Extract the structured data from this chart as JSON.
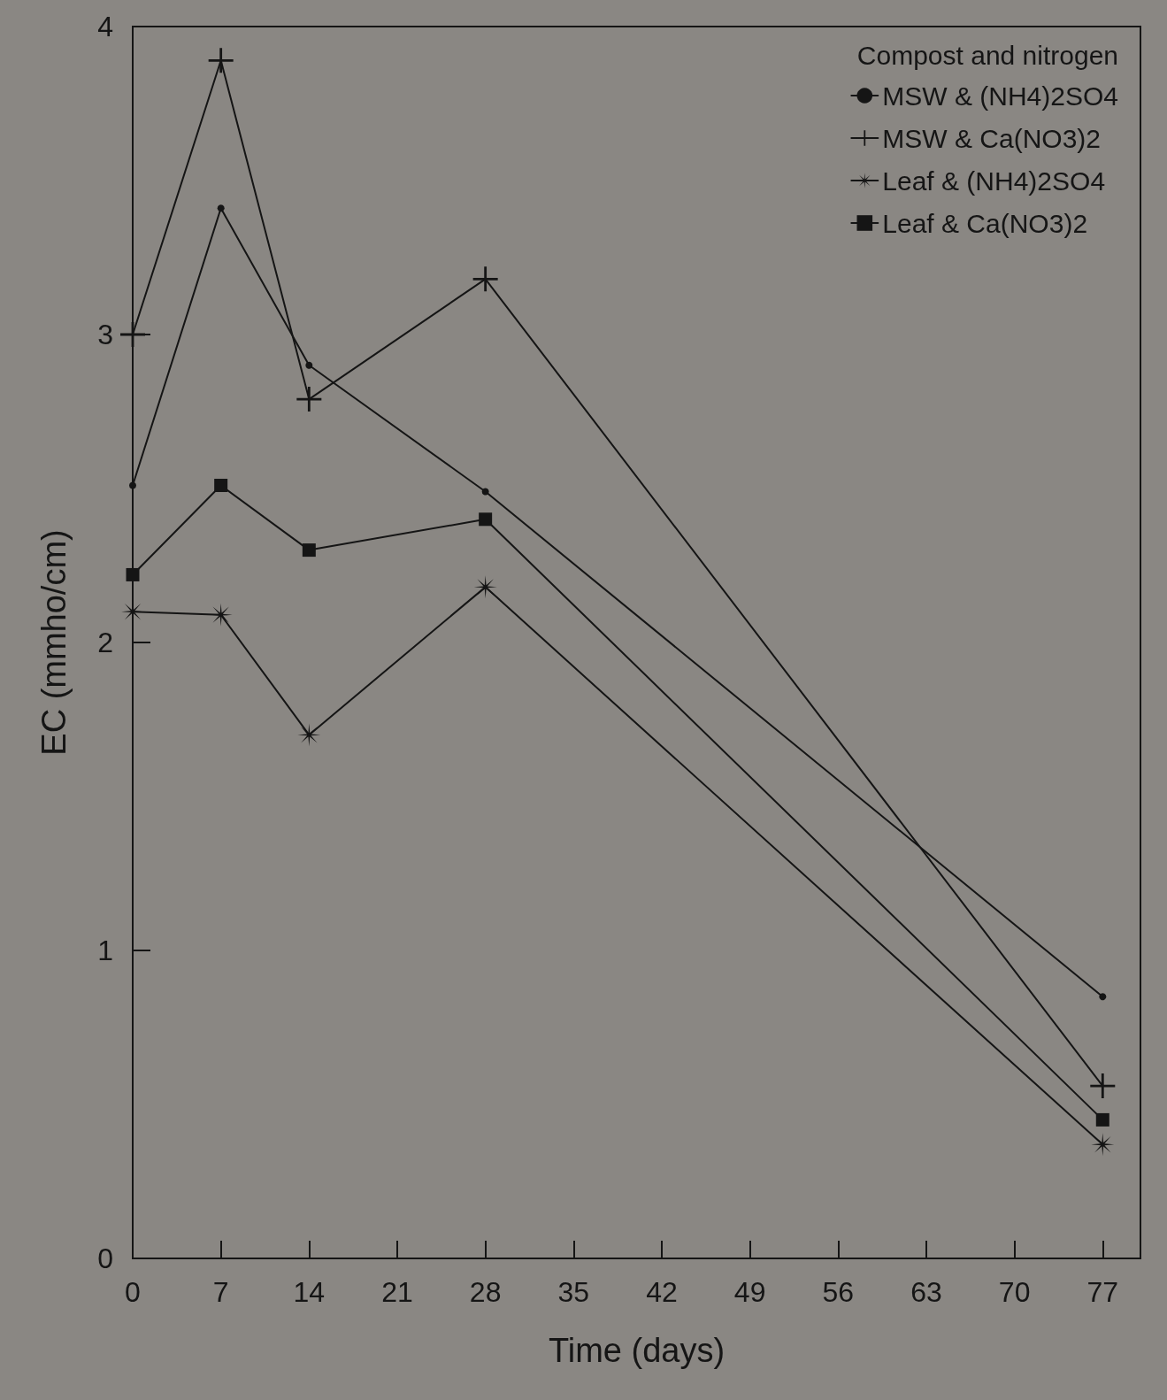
{
  "chart_data": {
    "type": "line",
    "xlabel": "Time (days)",
    "ylabel": "EC (mmho/cm)",
    "legend_title": "Compost and nitrogen",
    "x": [
      0,
      7,
      14,
      28,
      77
    ],
    "series": [
      {
        "name": "MSW & (NH4)2SO4",
        "color": "#151515",
        "marker": "circle",
        "values": [
          2.51,
          3.41,
          2.9,
          2.49,
          0.85
        ]
      },
      {
        "name": "MSW & Ca(NO3)2",
        "color": "#151515",
        "marker": "cross",
        "values": [
          3.0,
          3.89,
          2.79,
          3.18,
          0.56
        ]
      },
      {
        "name": "Leaf & (NH4)2SO4",
        "color": "#151515",
        "marker": "star",
        "values": [
          2.1,
          2.09,
          1.7,
          2.18,
          0.37
        ]
      },
      {
        "name": "Leaf & Ca(NO3)2",
        "color": "#151515",
        "marker": "square",
        "values": [
          2.22,
          2.51,
          2.3,
          2.4,
          0.45
        ]
      }
    ],
    "xlim": [
      0,
      80
    ],
    "xticks": [
      0,
      7,
      14,
      21,
      28,
      35,
      42,
      49,
      56,
      63,
      70,
      77
    ],
    "ylim": [
      0,
      4
    ],
    "yticks": [
      0,
      1,
      2,
      3,
      4
    ],
    "grid": false,
    "legend": "top right",
    "line_style": "solid"
  }
}
